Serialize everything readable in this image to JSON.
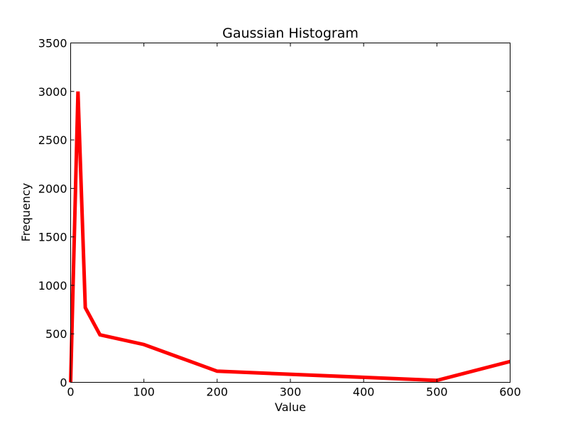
{
  "chart_data": {
    "type": "line",
    "title": "Gaussian Histogram",
    "xlabel": "Value",
    "ylabel": "Frequency",
    "xlim": [
      0,
      600
    ],
    "ylim": [
      0,
      3500
    ],
    "xticks": [
      0,
      100,
      200,
      300,
      400,
      500,
      600
    ],
    "yticks": [
      0,
      500,
      1000,
      1500,
      2000,
      2500,
      3000,
      3500
    ],
    "grid": false,
    "series": [
      {
        "color": "#ff0000",
        "x": [
          0,
          10,
          20,
          40,
          100,
          200,
          500,
          600
        ],
        "y": [
          0,
          3000,
          770,
          490,
          390,
          115,
          20,
          215
        ]
      }
    ]
  }
}
